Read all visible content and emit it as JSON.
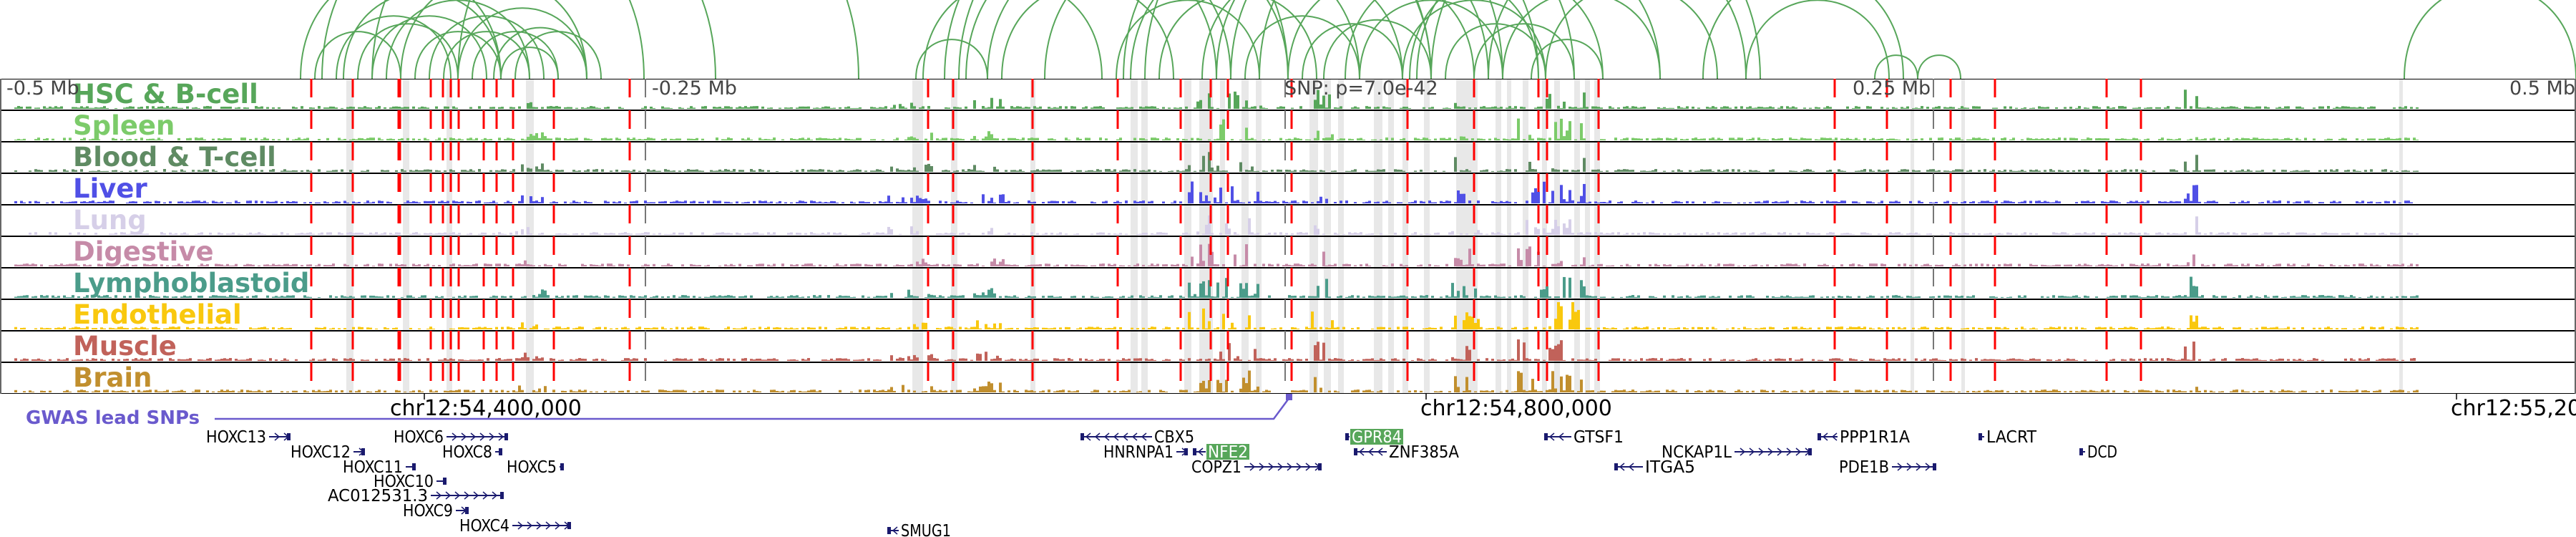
{
  "scale_labels": [
    "-0.5 Mb",
    "-0.25 Mb",
    "SNP: p=7.0e-42",
    "0.25 Mb",
    "0.5 Mb"
  ],
  "tracks": [
    {
      "name": "HSC & B-cell",
      "color": "#57a65a"
    },
    {
      "name": "Spleen",
      "color": "#7ccb6a"
    },
    {
      "name": "Blood & T-cell",
      "color": "#5f8b63"
    },
    {
      "name": "Liver",
      "color": "#5050e6"
    },
    {
      "name": "Lung",
      "color": "#d6cfe8"
    },
    {
      "name": "Digestive",
      "color": "#c68ba8"
    },
    {
      "name": "Lymphoblastoid",
      "color": "#4b9c8a"
    },
    {
      "name": "Endothelial",
      "color": "#f9c80e"
    },
    {
      "name": "Muscle",
      "color": "#c1625a"
    },
    {
      "name": "Brain",
      "color": "#c18f2e"
    }
  ],
  "coordinates": [
    "chr12:54,400,000",
    "chr12:54,800,000",
    "chr12:55,20"
  ],
  "gwas": {
    "label": "GWAS lead SNPs",
    "color": "#6a5acd"
  },
  "arc_color": "#57a65a",
  "highlight_color": "#e8e8e8",
  "snp_line_color": "#ff0000",
  "genes": [
    {
      "name": "HOXC13",
      "strand": "+",
      "highlight": false
    },
    {
      "name": "HOXC12",
      "strand": "+",
      "highlight": false
    },
    {
      "name": "HOXC11",
      "strand": "+",
      "highlight": false
    },
    {
      "name": "HOXC10",
      "strand": "+",
      "highlight": false
    },
    {
      "name": "AC012531.3",
      "strand": "+",
      "highlight": false
    },
    {
      "name": "HOXC9",
      "strand": "+",
      "highlight": false
    },
    {
      "name": "HOXC4",
      "strand": "+",
      "highlight": false
    },
    {
      "name": "HOXC6",
      "strand": "+",
      "highlight": false
    },
    {
      "name": "HOXC8",
      "strand": "+",
      "highlight": false
    },
    {
      "name": "HOXC5",
      "strand": "+",
      "highlight": false
    },
    {
      "name": "SMUG1",
      "strand": "-",
      "highlight": false
    },
    {
      "name": "CBX5",
      "strand": "-",
      "highlight": false
    },
    {
      "name": "HNRNPA1",
      "strand": "+",
      "highlight": false
    },
    {
      "name": "NFE2",
      "strand": "-",
      "highlight": true
    },
    {
      "name": "COPZ1",
      "strand": "+",
      "highlight": false
    },
    {
      "name": "GPR84",
      "strand": "-",
      "highlight": true
    },
    {
      "name": "ZNF385A",
      "strand": "-",
      "highlight": false
    },
    {
      "name": "ITGA5",
      "strand": "-",
      "highlight": false
    },
    {
      "name": "GTSF1",
      "strand": "-",
      "highlight": false
    },
    {
      "name": "NCKAP1L",
      "strand": "+",
      "highlight": false
    },
    {
      "name": "PDE1B",
      "strand": "+",
      "highlight": false
    },
    {
      "name": "PPP1R1A",
      "strand": "-",
      "highlight": false
    },
    {
      "name": "LACRT",
      "strand": "-",
      "highlight": false
    },
    {
      "name": "DCD",
      "strand": "-",
      "highlight": false
    }
  ],
  "gene_color": "#1a1a6e",
  "gene_highlight_bg": "#57a65a"
}
